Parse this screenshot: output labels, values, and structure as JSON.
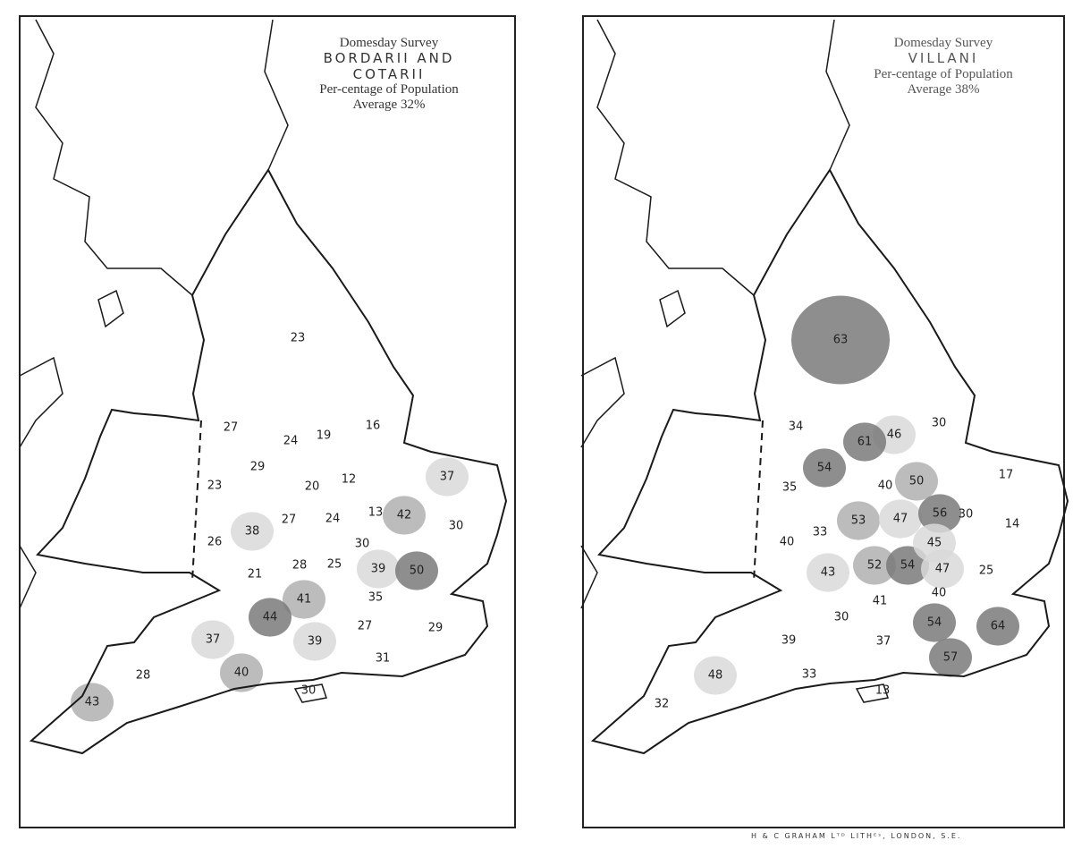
{
  "maps": [
    {
      "title_line1": "Domesday Survey",
      "title_line2": "BORDARII AND",
      "title_line3": "COTARII",
      "title_line4": "Per-centage of Population",
      "title_line5": "Average 32%",
      "average_percent": 32,
      "county_values": [
        "23",
        "27",
        "24",
        "19",
        "16",
        "29",
        "23",
        "20",
        "12",
        "37",
        "27",
        "24",
        "13",
        "42",
        "30",
        "26",
        "38",
        "30",
        "21",
        "28",
        "25",
        "39",
        "50",
        "41",
        "35",
        "44",
        "27",
        "29",
        "37",
        "39",
        "31",
        "28",
        "40",
        "30",
        "43"
      ]
    },
    {
      "title_line1": "Domesday Survey",
      "title_line2": "VILLANI",
      "title_line3": "",
      "title_line4": "Per-centage of Population",
      "title_line5": "Average 38%",
      "average_percent": 38,
      "county_values": [
        "63",
        "34",
        "46",
        "30",
        "61",
        "54",
        "35",
        "40",
        "50",
        "53",
        "47",
        "56",
        "30",
        "17",
        "14",
        "40",
        "33",
        "43",
        "52",
        "54",
        "45",
        "47",
        "25",
        "40",
        "41",
        "30",
        "54",
        "64",
        "39",
        "37",
        "57",
        "48",
        "33",
        "32",
        "13"
      ]
    }
  ],
  "imprint": "H & C GRAHAM Lᵀᴰ LITHᴱˢ, LONDON, S.E.",
  "colors": {
    "ink": "#1a1a1a",
    "light_shade": "#d9d9d9",
    "medium_shade": "#b0b0b0",
    "dark_shade": "#7a7a7a",
    "paper": "#ffffff"
  }
}
